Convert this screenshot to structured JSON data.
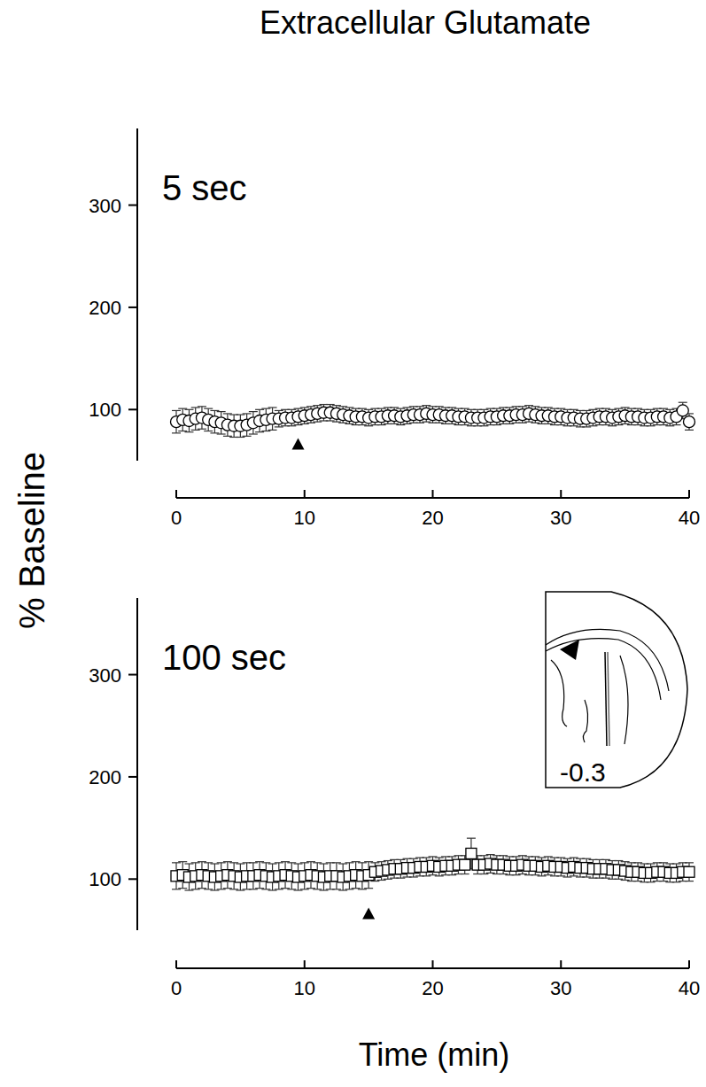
{
  "chart_data": [
    {
      "type": "scatter",
      "title": "Extracellular Glutamate",
      "y_label": "% Baseline",
      "panel_label": "5 sec",
      "x": [
        0,
        0.5,
        1,
        1.5,
        2,
        2.5,
        3,
        3.5,
        4,
        4.5,
        5,
        5.5,
        6,
        6.5,
        7,
        7.5,
        8,
        8.5,
        9,
        9.5,
        10,
        10.5,
        11,
        11.5,
        12,
        12.5,
        13,
        13.5,
        14,
        14.5,
        15,
        15.5,
        16,
        16.5,
        17,
        17.5,
        18,
        18.5,
        19,
        19.5,
        20,
        20.5,
        21,
        21.5,
        22,
        22.5,
        23,
        23.5,
        24,
        24.5,
        25,
        25.5,
        26,
        26.5,
        27,
        27.5,
        28,
        28.5,
        29,
        29.5,
        30,
        30.5,
        31,
        31.5,
        32,
        32.5,
        33,
        33.5,
        34,
        34.5,
        35,
        35.5,
        36,
        36.5,
        37,
        37.5,
        38,
        38.5,
        39,
        39.5,
        40
      ],
      "series": [
        {
          "marker": "circle",
          "color": "#000000",
          "values": [
            88,
            90,
            89,
            91,
            92,
            90,
            88,
            87,
            85,
            84,
            84,
            85,
            87,
            89,
            90,
            91,
            91,
            92,
            92,
            93,
            94,
            95,
            96,
            97,
            97,
            96,
            95,
            94,
            93,
            93,
            92,
            93,
            93,
            94,
            94,
            93,
            94,
            95,
            95,
            96,
            95,
            95,
            94,
            94,
            93,
            93,
            92,
            92,
            92,
            93,
            93,
            94,
            94,
            95,
            95,
            96,
            95,
            94,
            94,
            93,
            93,
            92,
            92,
            91,
            91,
            92,
            93,
            93,
            92,
            93,
            94,
            93,
            93,
            92,
            92,
            93,
            93,
            92,
            93,
            99,
            88
          ],
          "errors": [
            11,
            11,
            11,
            11,
            11,
            11,
            11,
            11,
            11,
            11,
            11,
            11,
            11,
            11,
            11,
            11,
            8,
            8,
            8,
            8,
            8,
            8,
            8,
            8,
            8,
            8,
            8,
            8,
            8,
            8,
            8,
            8,
            8,
            8,
            8,
            8,
            8,
            8,
            8,
            8,
            8,
            8,
            8,
            8,
            8,
            8,
            8,
            8,
            8,
            8,
            8,
            8,
            8,
            8,
            8,
            8,
            8,
            8,
            8,
            8,
            8,
            8,
            8,
            8,
            8,
            8,
            8,
            8,
            8,
            8,
            8,
            8,
            8,
            8,
            8,
            8,
            8,
            8,
            8,
            8,
            8
          ]
        }
      ],
      "xlim": [
        0,
        40
      ],
      "xticks": [
        0,
        10,
        20,
        30,
        40
      ],
      "ylim": [
        50,
        375
      ],
      "yticks": [
        100,
        200,
        300
      ],
      "stimulus": {
        "x": 9.5,
        "y": 66
      }
    },
    {
      "type": "scatter",
      "x_label": "Time (min)",
      "panel_label": "100 sec",
      "inset_label": "-0.3",
      "x": [
        0,
        0.5,
        1,
        1.5,
        2,
        2.5,
        3,
        3.5,
        4,
        4.5,
        5,
        5.5,
        6,
        6.5,
        7,
        7.5,
        8,
        8.5,
        9,
        9.5,
        10,
        10.5,
        11,
        11.5,
        12,
        12.5,
        13,
        13.5,
        14,
        14.5,
        15,
        15.5,
        16,
        16.5,
        17,
        17.5,
        18,
        18.5,
        19,
        19.5,
        20,
        20.5,
        21,
        21.5,
        22,
        22.5,
        23,
        23.5,
        24,
        24.5,
        25,
        25.5,
        26,
        26.5,
        27,
        27.5,
        28,
        28.5,
        29,
        29.5,
        30,
        30.5,
        31,
        31.5,
        32,
        32.5,
        33,
        33.5,
        34,
        34.5,
        35,
        35.5,
        36,
        36.5,
        37,
        37.5,
        38,
        38.5,
        39,
        39.5,
        40
      ],
      "series": [
        {
          "marker": "square",
          "color": "#000000",
          "values": [
            103,
            104,
            102,
            103,
            104,
            103,
            102,
            103,
            104,
            103,
            102,
            103,
            103,
            104,
            103,
            102,
            103,
            104,
            103,
            102,
            103,
            104,
            103,
            102,
            103,
            103,
            102,
            103,
            104,
            103,
            104,
            107,
            108,
            109,
            110,
            110,
            111,
            111,
            112,
            112,
            113,
            112,
            113,
            113,
            114,
            114,
            125,
            114,
            114,
            115,
            114,
            114,
            113,
            113,
            114,
            113,
            113,
            112,
            113,
            112,
            112,
            111,
            112,
            111,
            111,
            110,
            110,
            110,
            109,
            109,
            108,
            107,
            107,
            106,
            106,
            107,
            107,
            106,
            106,
            107,
            107
          ],
          "errors": [
            13,
            13,
            13,
            13,
            13,
            13,
            13,
            13,
            13,
            13,
            13,
            13,
            13,
            13,
            13,
            13,
            13,
            13,
            13,
            13,
            13,
            13,
            13,
            13,
            13,
            13,
            13,
            13,
            13,
            13,
            13,
            9,
            9,
            9,
            9,
            9,
            9,
            9,
            9,
            9,
            9,
            9,
            9,
            9,
            9,
            9,
            15,
            9,
            9,
            9,
            9,
            9,
            9,
            9,
            9,
            9,
            9,
            9,
            9,
            9,
            9,
            9,
            9,
            9,
            9,
            9,
            9,
            9,
            9,
            9,
            9,
            9,
            9,
            9,
            9,
            9,
            9,
            9,
            9,
            9,
            9
          ]
        }
      ],
      "xlim": [
        0,
        40
      ],
      "xticks": [
        0,
        10,
        20,
        30,
        40
      ],
      "ylim": [
        50,
        375
      ],
      "yticks": [
        100,
        200,
        300
      ],
      "stimulus": {
        "x": 15,
        "y": 66
      }
    }
  ]
}
